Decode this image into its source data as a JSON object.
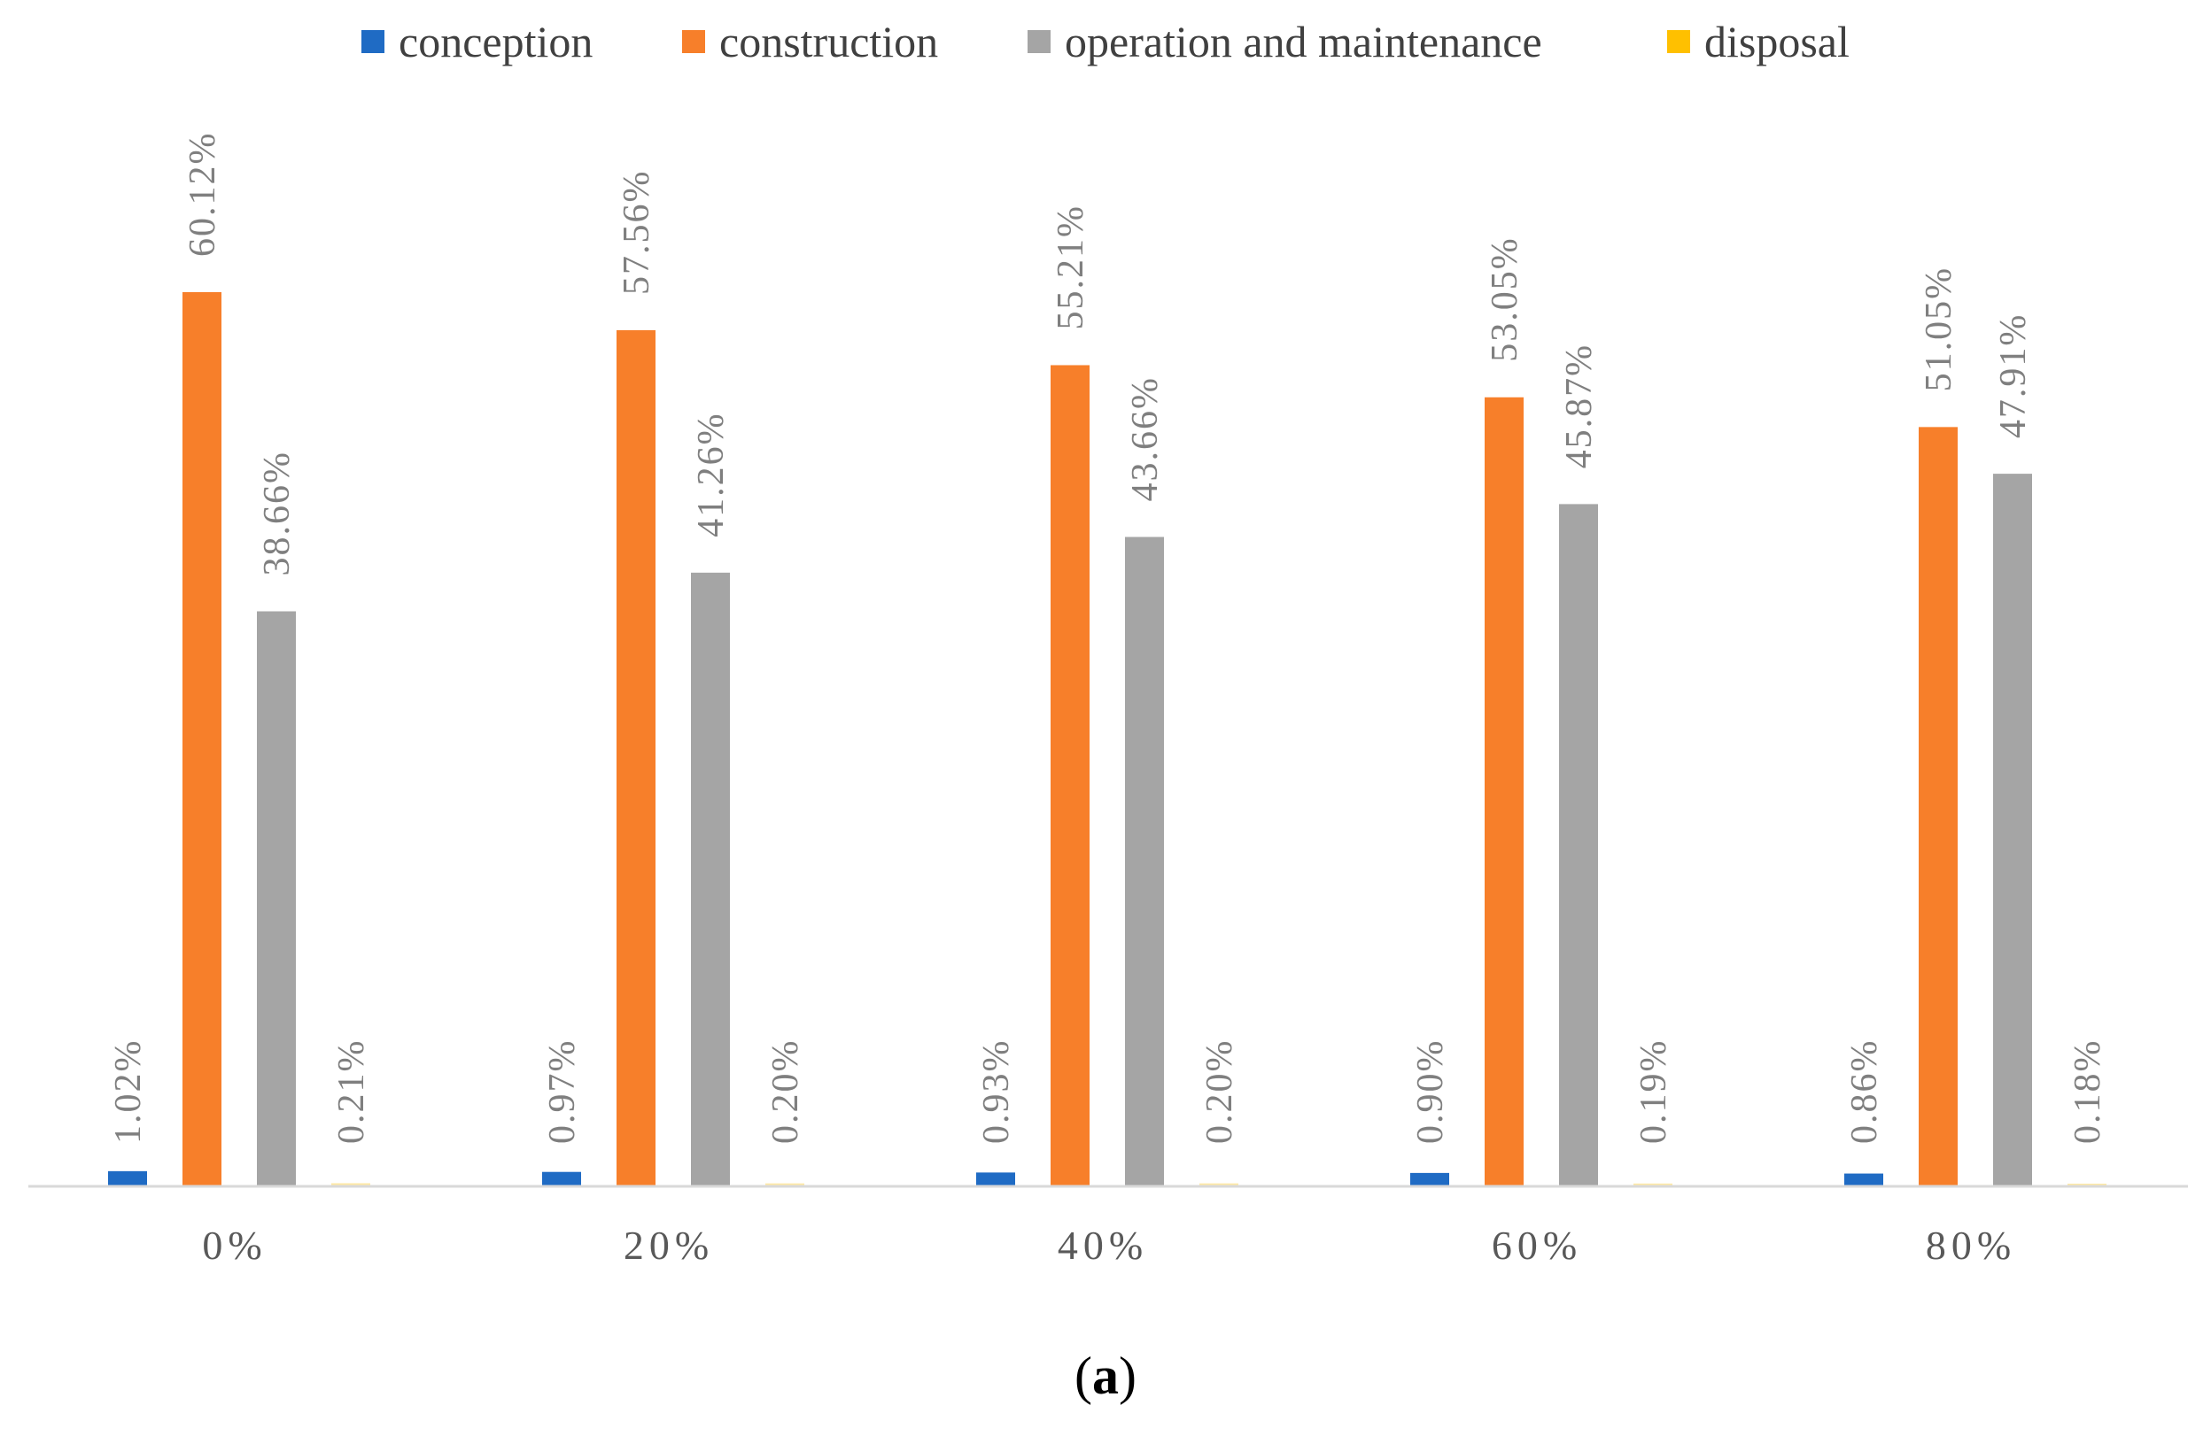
{
  "chart_data": {
    "type": "bar",
    "title": "",
    "xlabel": "",
    "ylabel": "",
    "ylim": [
      0,
      65
    ],
    "grid": false,
    "legend_position": "top-center",
    "categories": [
      "0%",
      "20%",
      "40%",
      "60%",
      "80%"
    ],
    "series": [
      {
        "name": "conception",
        "color": "#1f6bc4",
        "values": [
          1.02,
          0.97,
          0.93,
          0.9,
          0.86
        ],
        "labels": [
          "1.02%",
          "0.97%",
          "0.93%",
          "0.90%",
          "0.86%"
        ]
      },
      {
        "name": "construction",
        "color": "#f77f2a",
        "values": [
          60.12,
          57.56,
          55.21,
          53.05,
          51.05
        ],
        "labels": [
          "60.12%",
          "57.56%",
          "55.21%",
          "53.05%",
          "51.05%"
        ]
      },
      {
        "name": "operation and maintenance",
        "color": "#a5a5a5",
        "values": [
          38.66,
          41.26,
          43.66,
          45.87,
          47.91
        ],
        "labels": [
          "38.66%",
          "41.26%",
          "43.66%",
          "45.87%",
          "47.91%"
        ]
      },
      {
        "name": "disposal",
        "color": "#ffc000",
        "values": [
          0.21,
          0.2,
          0.2,
          0.19,
          0.18
        ],
        "labels": [
          "0.21%",
          "0.20%",
          "0.20%",
          "0.19%",
          "0.18%"
        ]
      }
    ]
  },
  "caption": {
    "open": "(",
    "letter": "a",
    "close": ")"
  }
}
